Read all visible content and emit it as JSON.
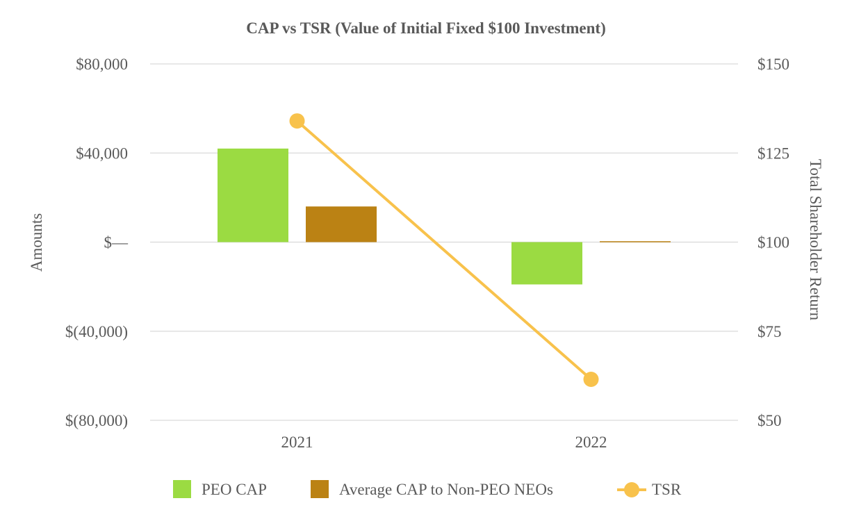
{
  "chart_data": {
    "type": "bar+line",
    "title": "CAP vs TSR (Value of Initial Fixed $100 Investment)",
    "categories": [
      "2021",
      "2022"
    ],
    "series": [
      {
        "name": "PEO CAP",
        "type": "bar",
        "axis": "left",
        "color": "#9bdb42",
        "values": [
          42000,
          -19000
        ]
      },
      {
        "name": "Average CAP to Non-PEO NEOs",
        "type": "bar",
        "axis": "left",
        "color": "#bb8214",
        "values": [
          16000,
          400
        ]
      },
      {
        "name": "TSR",
        "type": "line",
        "axis": "right",
        "color": "#f8c24c",
        "values": [
          134,
          61.5
        ]
      }
    ],
    "left_axis": {
      "label": "Amounts",
      "ylim": [
        -80000,
        80000
      ],
      "ticks": [
        {
          "value": 80000,
          "label": "$80,000"
        },
        {
          "value": 40000,
          "label": "$40,000"
        },
        {
          "value": 0,
          "label": "$—"
        },
        {
          "value": -40000,
          "label": "$(40,000)"
        },
        {
          "value": -80000,
          "label": "$(80,000)"
        }
      ]
    },
    "right_axis": {
      "label": "Total Shareholder Return",
      "ylim": [
        50,
        150
      ],
      "ticks": [
        {
          "value": 150,
          "label": "$150"
        },
        {
          "value": 125,
          "label": "$125"
        },
        {
          "value": 100,
          "label": "$100"
        },
        {
          "value": 75,
          "label": "$75"
        },
        {
          "value": 50,
          "label": "$50"
        }
      ]
    },
    "grid": true,
    "legend_position": "bottom"
  }
}
